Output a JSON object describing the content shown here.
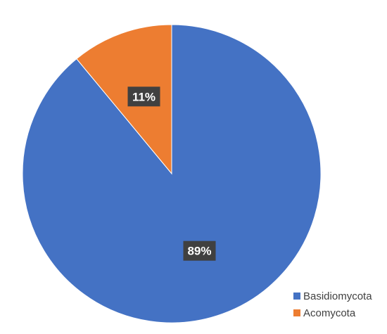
{
  "chart_data": {
    "type": "pie",
    "title": "",
    "categories": [
      "Basidiomycota",
      "Acomycota"
    ],
    "values": [
      89,
      11
    ],
    "labels": [
      "89%",
      "11%"
    ],
    "colors": [
      "#4472C4",
      "#ED7D31"
    ],
    "legend_placement": "bottom-right",
    "start_angle_deg": 0,
    "direction": "clockwise"
  }
}
